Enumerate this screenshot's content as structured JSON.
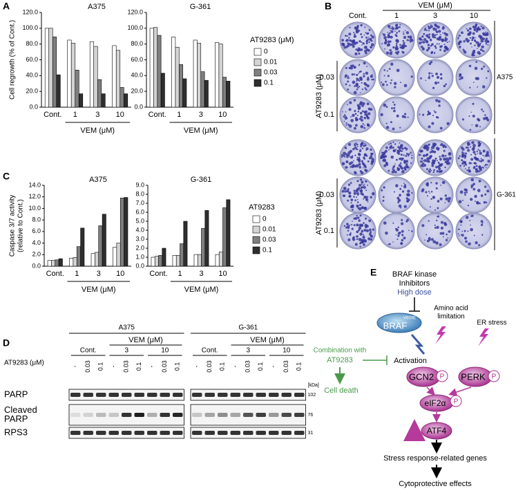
{
  "panel_labels": [
    "A",
    "B",
    "C",
    "D",
    "E"
  ],
  "chart_data": [
    {
      "type": "bar",
      "title": "A375",
      "ylabel": [
        "Cell regrowth (% of Cont.)"
      ],
      "xlabel": "VEM (μM)",
      "categories": [
        "Cont.",
        "1",
        "3",
        "10"
      ],
      "series": [
        {
          "name": "0",
          "color": "#ffffff",
          "values": [
            100,
            85,
            83,
            78
          ]
        },
        {
          "name": "0.01",
          "color": "#d4d4d4",
          "values": [
            100,
            81,
            77,
            72
          ]
        },
        {
          "name": "0.03",
          "color": "#7f7f7f",
          "values": [
            89,
            47,
            35,
            25
          ]
        },
        {
          "name": "0.1",
          "color": "#2e2e2e",
          "values": [
            41,
            17,
            17,
            17
          ]
        }
      ],
      "ylim": [
        0,
        120
      ],
      "yticks": [
        {
          "value": 0,
          "label": "0.0"
        },
        {
          "value": 20,
          "label": "20.0"
        },
        {
          "value": 40,
          "label": "40.0"
        },
        {
          "value": 60,
          "label": "60.0"
        },
        {
          "value": 80,
          "label": "80.0"
        },
        {
          "value": 100,
          "label": "100.0"
        },
        {
          "value": 120,
          "label": "120.0"
        }
      ]
    },
    {
      "type": "bar",
      "title": "G-361",
      "xlabel": "VEM (μM)",
      "legend_title": "AT9283 (μM)",
      "categories": [
        "Cont.",
        "1",
        "3",
        "10"
      ],
      "series": [
        {
          "name": "0",
          "color": "#ffffff",
          "values": [
            100,
            89,
            85,
            82
          ]
        },
        {
          "name": "0.01",
          "color": "#d4d4d4",
          "values": [
            101,
            76,
            81,
            80
          ]
        },
        {
          "name": "0.03",
          "color": "#7f7f7f",
          "values": [
            91,
            54,
            45,
            38
          ]
        },
        {
          "name": "0.1",
          "color": "#2e2e2e",
          "values": [
            43,
            36,
            34,
            33
          ]
        }
      ],
      "ylim": [
        0,
        120
      ],
      "yticks": [
        {
          "value": 0,
          "label": "0.0"
        },
        {
          "value": 20,
          "label": "20.0"
        },
        {
          "value": 40,
          "label": "40.0"
        },
        {
          "value": 60,
          "label": "60.0"
        },
        {
          "value": 80,
          "label": "80.0"
        },
        {
          "value": 100,
          "label": "100.0"
        },
        {
          "value": 120,
          "label": "120.0"
        }
      ]
    },
    {
      "type": "bar",
      "title": "A375",
      "ylabel": [
        "Caspase 3/7 activity",
        "(relative to Cont.)"
      ],
      "xlabel": "VEM (μM)",
      "categories": [
        "Cont.",
        "1",
        "3",
        "10"
      ],
      "series": [
        {
          "name": "0",
          "color": "#ffffff",
          "values": [
            1.0,
            1.4,
            2.2,
            3.3
          ]
        },
        {
          "name": "0.01",
          "color": "#d4d4d4",
          "values": [
            1.0,
            1.5,
            2.4,
            4.0
          ]
        },
        {
          "name": "0.03",
          "color": "#7f7f7f",
          "values": [
            1.1,
            3.4,
            7.0,
            11.8
          ]
        },
        {
          "name": "0.1",
          "color": "#2e2e2e",
          "values": [
            1.3,
            6.6,
            9.0,
            11.9
          ]
        }
      ],
      "ylim": [
        0,
        14
      ],
      "yticks": [
        {
          "value": 0,
          "label": "0.0"
        },
        {
          "value": 2,
          "label": "2.0"
        },
        {
          "value": 4,
          "label": "4.0"
        },
        {
          "value": 6,
          "label": "6.0"
        },
        {
          "value": 8,
          "label": "8.0"
        },
        {
          "value": 10,
          "label": "10.0"
        },
        {
          "value": 12,
          "label": "12.0"
        },
        {
          "value": 14,
          "label": "14.0"
        }
      ]
    },
    {
      "type": "bar",
      "title": "G-361",
      "xlabel": "VEM (μM)",
      "legend_title": "AT9283",
      "categories": [
        "Cont.",
        "1",
        "3",
        "10"
      ],
      "series": [
        {
          "name": "0",
          "color": "#ffffff",
          "values": [
            1.0,
            1.2,
            1.3,
            1.3
          ]
        },
        {
          "name": "0.01",
          "color": "#d4d4d4",
          "values": [
            1.1,
            1.2,
            1.3,
            1.6
          ]
        },
        {
          "name": "0.03",
          "color": "#7f7f7f",
          "values": [
            1.2,
            2.5,
            4.2,
            6.5
          ]
        },
        {
          "name": "0.1",
          "color": "#2e2e2e",
          "values": [
            2.0,
            5.0,
            6.2,
            7.4
          ]
        }
      ],
      "ylim": [
        0,
        9
      ],
      "yticks": [
        {
          "value": 0,
          "label": "0.0"
        },
        {
          "value": 1,
          "label": "1.0"
        },
        {
          "value": 2,
          "label": "2.0"
        },
        {
          "value": 3,
          "label": "3.0"
        },
        {
          "value": 4,
          "label": "4.0"
        },
        {
          "value": 5,
          "label": "5.0"
        },
        {
          "value": 6,
          "label": "6.0"
        },
        {
          "value": 7,
          "label": "7.0"
        },
        {
          "value": 8,
          "label": "8.0"
        },
        {
          "value": 9,
          "label": "9.0"
        }
      ]
    }
  ],
  "colony_panel": {
    "vem_label": "VEM (μM)",
    "columns": [
      "Cont.",
      "1",
      "3",
      "10"
    ],
    "at_label": "AT9283 (μM)",
    "rows": [
      "0.03",
      "0.1"
    ],
    "cell_lines": [
      "A375",
      "G-361"
    ]
  },
  "western_blot": {
    "cell_lines": [
      "A375",
      "G-361"
    ],
    "control": "Cont.",
    "vem_label": "VEM (μM)",
    "vem_doses": [
      "3",
      "10"
    ],
    "at_label": "AT9283 (μM)",
    "lane_doses": [
      "-",
      "0.03",
      "0.1"
    ],
    "unit": "[kDa]",
    "rows": [
      {
        "label": [
          "PARP"
        ],
        "kda": "102"
      },
      {
        "label": [
          "Cleaved",
          "PARP"
        ],
        "kda": "76"
      },
      {
        "label": [
          "RPS3"
        ],
        "kda": "31"
      }
    ]
  },
  "pathway": {
    "inhibitor": [
      "BRAF kinase",
      "Inhibitors"
    ],
    "dose": "High dose",
    "braf": "BRAF",
    "mutation": "V600E",
    "amino": [
      "Amino acid",
      "limitation"
    ],
    "er": "ER stress",
    "combination": [
      "Combination with",
      "AT9283"
    ],
    "activation": "Activation",
    "death": "Cell death",
    "gcn2": "GCN2",
    "perk": "PERK",
    "phospho": "P",
    "eif": "eIF2α",
    "atf4": "ATF4",
    "genes": "Stress response-related genes",
    "effects": "Cytoprotective effects"
  }
}
